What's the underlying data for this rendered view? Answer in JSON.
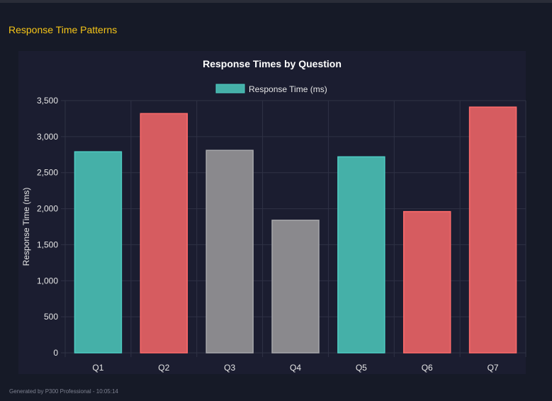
{
  "section_title": "Response Time Patterns",
  "footer": "Generated by P300 Professional - 10:05:14",
  "chart_data": {
    "type": "bar",
    "title": "Response Times by Question",
    "xlabel": "",
    "ylabel": "Response Time (ms)",
    "legend": {
      "label": "Response Time (ms)",
      "position": "top"
    },
    "categories": [
      "Q1",
      "Q2",
      "Q3",
      "Q4",
      "Q5",
      "Q6",
      "Q7"
    ],
    "values": [
      2790,
      3320,
      2810,
      1840,
      2720,
      1960,
      3410
    ],
    "bar_colors": [
      "#45b0a8",
      "#d65c60",
      "#8a898d",
      "#8a898d",
      "#45b0a8",
      "#d65c60",
      "#d65c60"
    ],
    "border_colors": [
      "#4ecdc4",
      "#ff6b6b",
      "#a8a8ab",
      "#a8a8ab",
      "#4ecdc4",
      "#ff6b6b",
      "#ff6b6b"
    ],
    "ylim": [
      0,
      3500
    ],
    "yticks": [
      "0",
      "500",
      "1,000",
      "1,500",
      "2,000",
      "2,500",
      "3,000",
      "3,500"
    ],
    "grid": true
  }
}
